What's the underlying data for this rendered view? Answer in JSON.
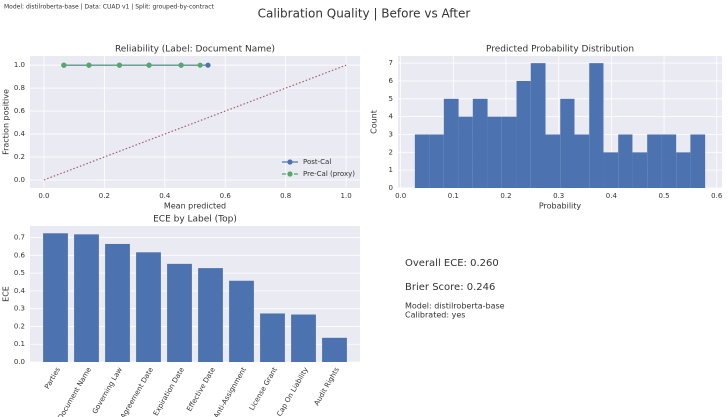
{
  "header": "Model: distilroberta-base | Data: CUAD v1 | Split: grouped-by-contract",
  "title": "Calibration Quality | Before vs After",
  "chart_data": [
    {
      "type": "line",
      "title": "Reliability (Label: Document Name)",
      "x_label": "Mean predicted",
      "y_label": "Fraction positive",
      "xlim": [
        -0.046,
        1.046
      ],
      "ylim": [
        -0.07,
        1.08
      ],
      "xticks": [
        {
          "value": 0,
          "label": "0.0"
        },
        0.2,
        0.4,
        0.6,
        0.8,
        {
          "value": 1,
          "label": "1.0"
        }
      ],
      "yticks": [
        {
          "value": 0,
          "label": "0.0"
        },
        0.2,
        0.4,
        0.6,
        0.8,
        {
          "value": 1,
          "label": "1.0"
        }
      ],
      "grid": true,
      "legend": "lower right",
      "reference": {
        "x": [
          0,
          1
        ],
        "y": [
          0,
          1
        ],
        "color": "#a0606e"
      },
      "series": [
        {
          "name": "Post-Cal",
          "color": "#4c72b0",
          "dash": false,
          "x": [
            0.066,
            0.149,
            0.25,
            0.348,
            0.454,
            0.543
          ],
          "values": [
            1,
            1,
            1,
            1,
            1,
            1
          ]
        },
        {
          "name": "Pre-Cal (proxy)",
          "color": "#55a868",
          "dash": true,
          "x": [
            0.066,
            0.149,
            0.25,
            0.348,
            0.454,
            0.517
          ],
          "values": [
            1,
            1,
            1,
            1,
            1,
            1
          ]
        }
      ]
    },
    {
      "type": "histogram",
      "title": "Predicted Probability Distribution",
      "x_label": "Probability",
      "y_label": "Count",
      "xlim": [
        -0.005,
        0.61
      ],
      "ylim": [
        0,
        7.4
      ],
      "xticks": [
        {
          "value": 0,
          "label": "0.0"
        },
        0.1,
        0.2,
        0.3,
        0.4,
        0.5,
        0.6
      ],
      "yticks": [
        0,
        1,
        2,
        3,
        4,
        5,
        6,
        7
      ],
      "grid": true,
      "color": "#4c72b0",
      "bins": [
        0.027,
        0.055,
        0.082,
        0.11,
        0.137,
        0.165,
        0.192,
        0.22,
        0.247,
        0.275,
        0.303,
        0.33,
        0.358,
        0.385,
        0.413,
        0.44,
        0.468,
        0.495,
        0.523,
        0.55,
        0.578
      ],
      "values": [
        3,
        3,
        5,
        4,
        5,
        4,
        4,
        6,
        7,
        3,
        5,
        3,
        7,
        2,
        3,
        2,
        3,
        3,
        2,
        3
      ]
    },
    {
      "type": "bar",
      "title": "ECE by Label (Top)",
      "y_label": "ECE",
      "categories": [
        "Parties",
        "Document Name",
        "Governing Law",
        "Agreement Date",
        "Expiration Date",
        "Effective Date",
        "Anti-Assignment",
        "License Grant",
        "Cap On Liability",
        "Audit Rights"
      ],
      "values": [
        0.724,
        0.718,
        0.664,
        0.617,
        0.552,
        0.528,
        0.457,
        0.273,
        0.267,
        0.136
      ],
      "ylim": [
        0,
        0.765
      ],
      "yticks": [
        {
          "value": 0,
          "label": "0.0"
        },
        0.1,
        0.2,
        0.3,
        0.4,
        0.5,
        0.6,
        0.7
      ],
      "grid": true,
      "color": "#4c72b0"
    }
  ],
  "summary": {
    "overall_ece": "Overall ECE: 0.260",
    "brier": "Brier Score: 0.246",
    "model": "Model: distilroberta-base",
    "calibrated": "Calibrated: yes"
  }
}
